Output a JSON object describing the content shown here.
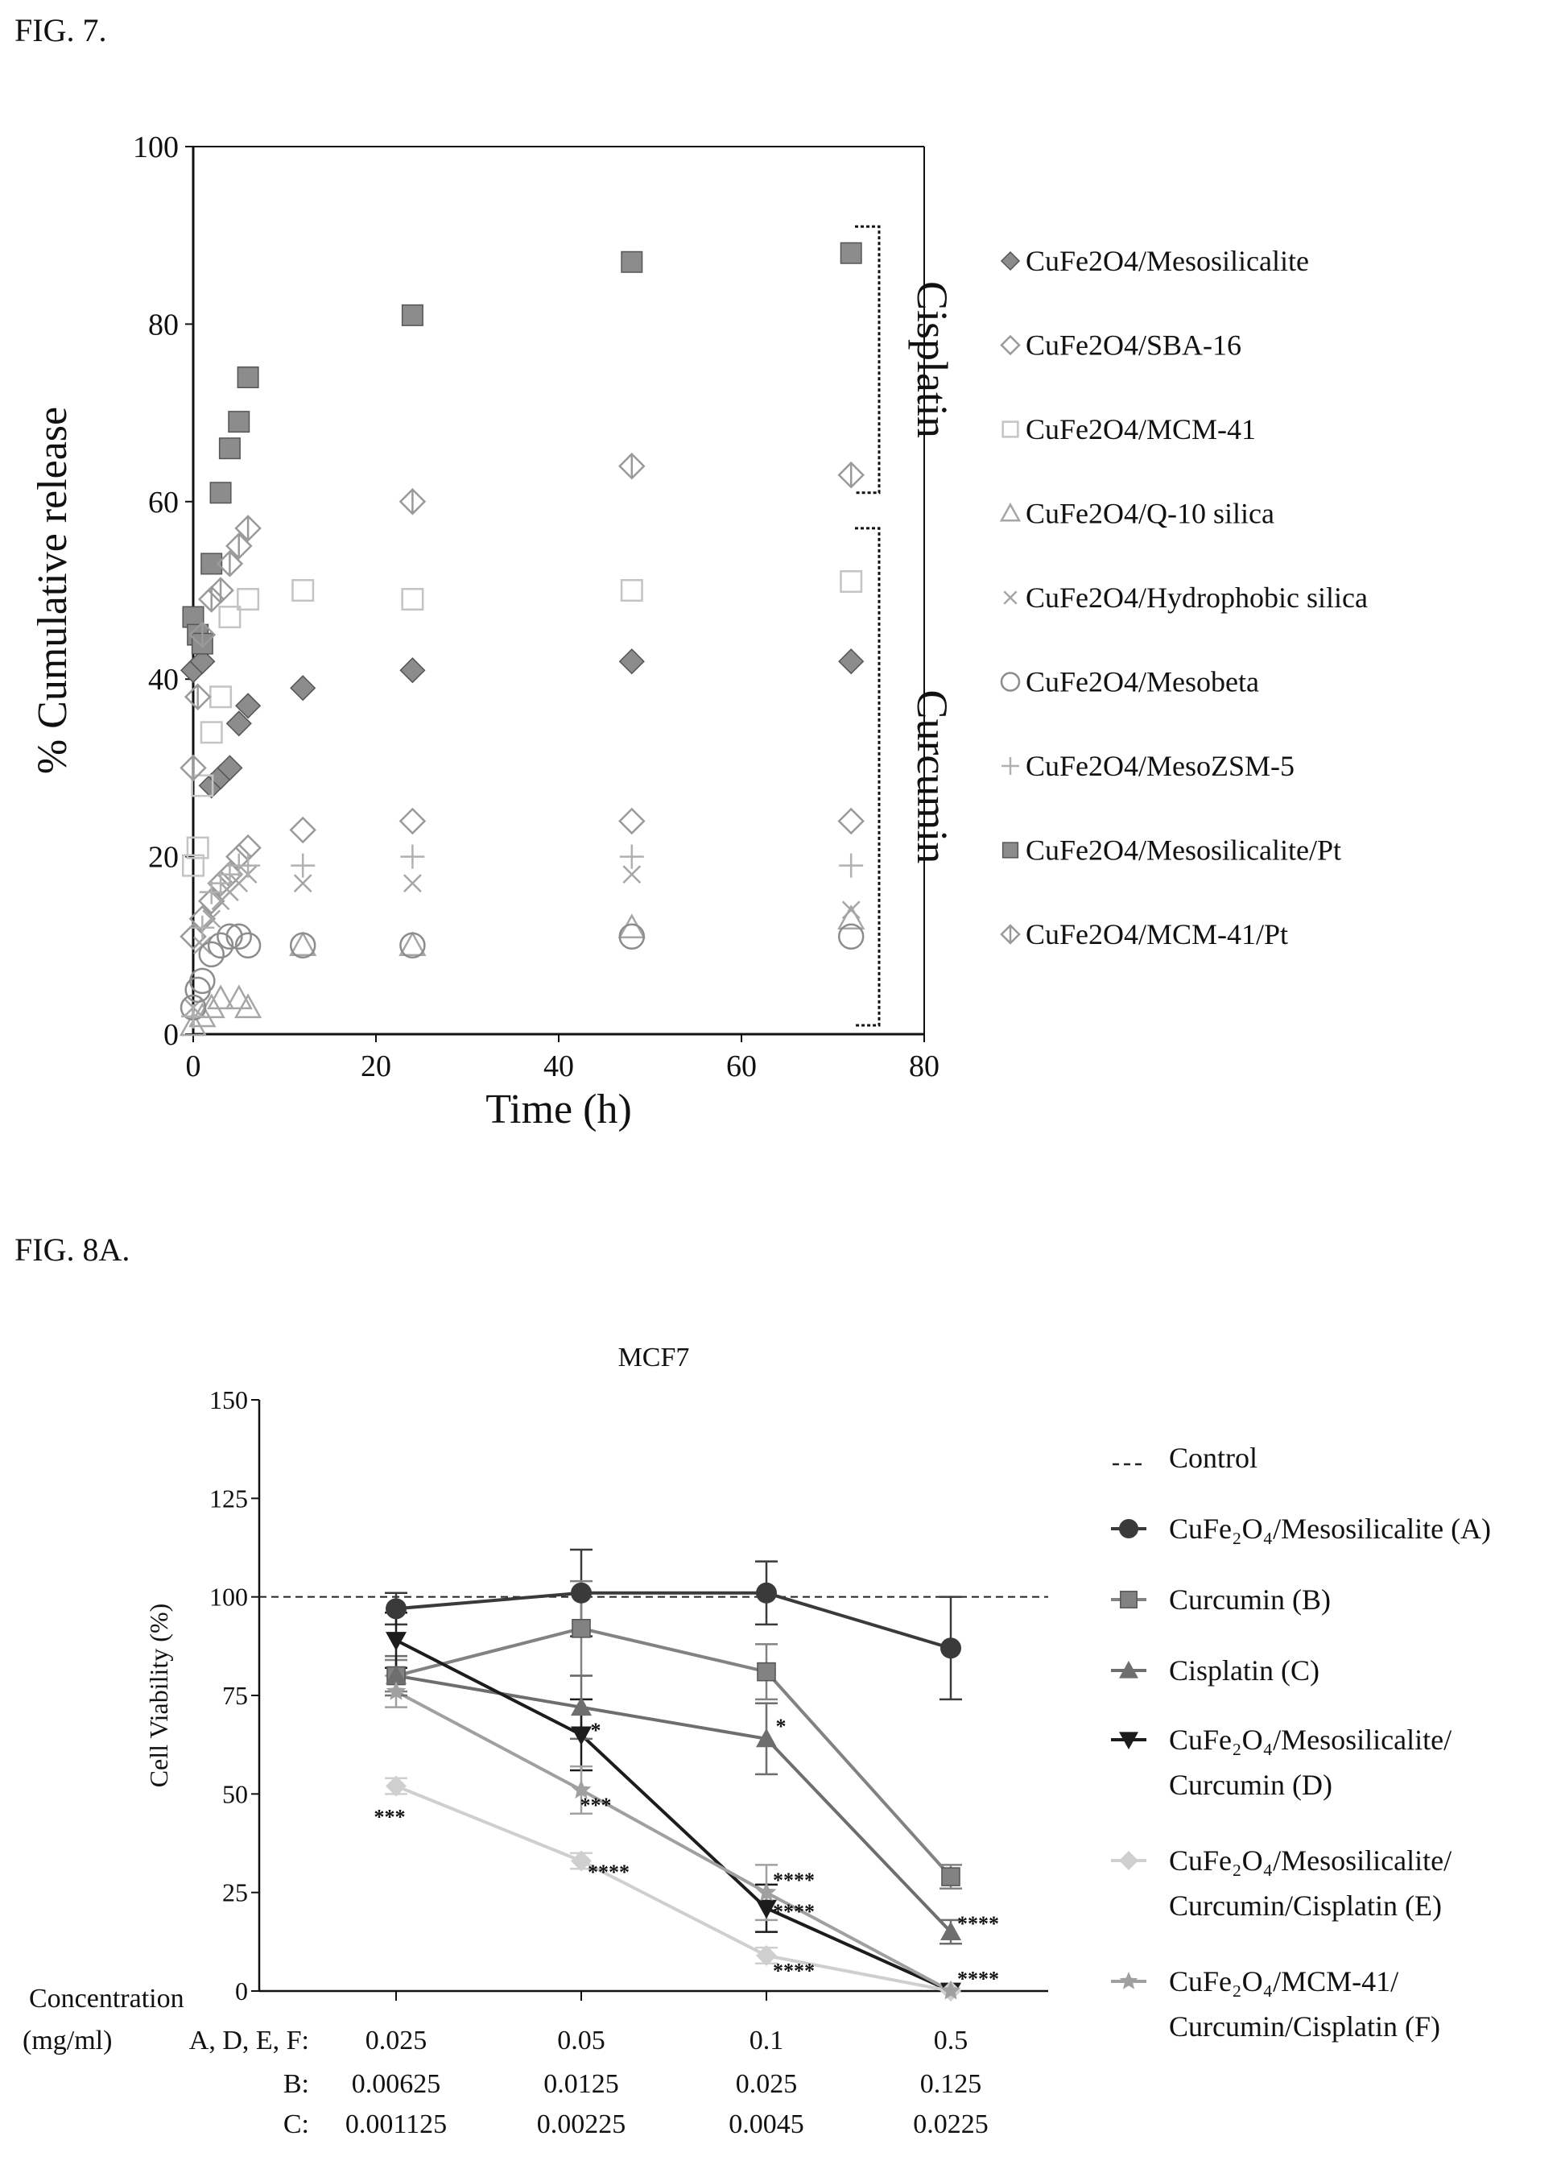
{
  "figures": {
    "fig7_label": "FIG. 7.",
    "fig8a_label": "FIG. 8A."
  },
  "chart_data": [
    {
      "type": "scatter",
      "title": "",
      "xlabel": "Time (h)",
      "ylabel": "% Cumulative release",
      "xlim": [
        0,
        80
      ],
      "ylim": [
        0,
        100
      ],
      "x_ticks": [
        "0",
        "20",
        "40",
        "60",
        "80"
      ],
      "y_ticks": [
        "0",
        "20",
        "40",
        "60",
        "80",
        "100"
      ],
      "legend_position": "right",
      "brackets": [
        {
          "label": "Cisplatin",
          "from": 61,
          "to": 91
        },
        {
          "label": "Curcumin",
          "from": 1,
          "to": 57
        }
      ],
      "series": [
        {
          "name": "CuFe2O4/Mesosilicalite",
          "marker": "diamond-filled",
          "color": "#8c8c8c",
          "points": [
            [
              0,
              41
            ],
            [
              1,
              42
            ],
            [
              2,
              28
            ],
            [
              3,
              29
            ],
            [
              4,
              30
            ],
            [
              5,
              35
            ],
            [
              6,
              37
            ],
            [
              12,
              39
            ],
            [
              24,
              41
            ],
            [
              48,
              42
            ],
            [
              72,
              42
            ]
          ]
        },
        {
          "name": "CuFe2O4/SBA-16",
          "marker": "diamond-open",
          "color": "#9a9a9a",
          "points": [
            [
              0,
              11
            ],
            [
              1,
              13
            ],
            [
              2,
              15
            ],
            [
              3,
              17
            ],
            [
              4,
              18
            ],
            [
              5,
              20
            ],
            [
              6,
              21
            ],
            [
              12,
              23
            ],
            [
              24,
              24
            ],
            [
              48,
              24
            ],
            [
              72,
              24
            ]
          ]
        },
        {
          "name": "CuFe2O4/MCM-41",
          "marker": "square-open",
          "color": "#c4c4c4",
          "points": [
            [
              0,
              19
            ],
            [
              0.5,
              21
            ],
            [
              1,
              28
            ],
            [
              2,
              34
            ],
            [
              3,
              38
            ],
            [
              4,
              47
            ],
            [
              6,
              49
            ],
            [
              12,
              50
            ],
            [
              24,
              49
            ],
            [
              48,
              50
            ],
            [
              72,
              51
            ]
          ]
        },
        {
          "name": "CuFe2O4/Q-10 silica",
          "marker": "triangle-open",
          "color": "#a6a6a6",
          "points": [
            [
              0,
              1
            ],
            [
              1,
              2
            ],
            [
              2,
              3
            ],
            [
              3,
              4
            ],
            [
              5,
              4
            ],
            [
              6,
              3
            ],
            [
              12,
              10
            ],
            [
              24,
              10
            ],
            [
              48,
              12
            ],
            [
              72,
              13
            ]
          ]
        },
        {
          "name": "CuFe2O4/Hydrophobic silica",
          "marker": "cross",
          "color": "#a6a6a6",
          "points": [
            [
              0,
              3
            ],
            [
              1,
              10
            ],
            [
              2,
              13
            ],
            [
              3,
              15
            ],
            [
              4,
              16
            ],
            [
              5,
              17
            ],
            [
              6,
              18
            ],
            [
              12,
              17
            ],
            [
              24,
              17
            ],
            [
              48,
              18
            ],
            [
              72,
              14
            ]
          ]
        },
        {
          "name": "CuFe2O4/Mesobeta",
          "marker": "circle-open",
          "color": "#8c8c8c",
          "points": [
            [
              0,
              3
            ],
            [
              0.5,
              5
            ],
            [
              1,
              6
            ],
            [
              2,
              9
            ],
            [
              3,
              10
            ],
            [
              4,
              11
            ],
            [
              5,
              11
            ],
            [
              6,
              10
            ],
            [
              12,
              10
            ],
            [
              24,
              10
            ],
            [
              48,
              11
            ],
            [
              72,
              11
            ]
          ]
        },
        {
          "name": "CuFe2O4/MesoZSM-5",
          "marker": "plus",
          "color": "#b0b0b0",
          "points": [
            [
              0,
              2
            ],
            [
              1,
              12
            ],
            [
              2,
              16
            ],
            [
              3,
              17
            ],
            [
              4,
              18
            ],
            [
              5,
              19
            ],
            [
              6,
              19
            ],
            [
              12,
              19
            ],
            [
              24,
              20
            ],
            [
              48,
              20
            ],
            [
              72,
              19
            ]
          ]
        },
        {
          "name": "CuFe2O4/Mesosilicalite/Pt",
          "marker": "square-filled",
          "color": "#8c8c8c",
          "points": [
            [
              0,
              47
            ],
            [
              0.5,
              45
            ],
            [
              1,
              44
            ],
            [
              2,
              53
            ],
            [
              3,
              61
            ],
            [
              4,
              66
            ],
            [
              5,
              69
            ],
            [
              6,
              74
            ],
            [
              24,
              81
            ],
            [
              48,
              87
            ],
            [
              72,
              88
            ]
          ]
        },
        {
          "name": "CuFe2O4/MCM-41/Pt",
          "marker": "diamond-split",
          "color": "#9a9a9a",
          "points": [
            [
              0,
              30
            ],
            [
              0.5,
              38
            ],
            [
              1,
              45
            ],
            [
              2,
              49
            ],
            [
              3,
              50
            ],
            [
              4,
              53
            ],
            [
              5,
              55
            ],
            [
              6,
              57
            ],
            [
              24,
              60
            ],
            [
              48,
              64
            ],
            [
              72,
              63
            ]
          ]
        }
      ]
    },
    {
      "type": "line",
      "title": "MCF7",
      "xlabel": "",
      "ylabel": "Cell Viability (%)",
      "ylim": [
        0,
        150
      ],
      "y_ticks": [
        "0",
        "25",
        "50",
        "75",
        "100",
        "125",
        "150"
      ],
      "categories": [
        "0.025",
        "0.05",
        "0.1",
        "0.5"
      ],
      "concentration_table": {
        "title_line1": "Concentration",
        "title_line2": "(mg/ml)",
        "rows": [
          {
            "label": "A, D, E, F:",
            "values": [
              "0.025",
              "0.05",
              "0.1",
              "0.5"
            ]
          },
          {
            "label": "B:",
            "values": [
              "0.00625",
              "0.0125",
              "0.025",
              "0.125"
            ]
          },
          {
            "label": "C:",
            "values": [
              "0.001125",
              "0.00225",
              "0.0045",
              "0.0225"
            ]
          }
        ]
      },
      "control": {
        "name": "Control",
        "value": 100
      },
      "legend_position": "right",
      "series": [
        {
          "name_main": "CuFe₂O₄/Mesosilicalite (A)",
          "name_cont": "",
          "marker": "circle",
          "color": "#3a3a3a",
          "values": [
            97,
            101,
            101,
            87
          ],
          "errors": [
            4,
            11,
            8,
            13
          ]
        },
        {
          "name_main": "Curcumin (B)",
          "name_cont": "",
          "marker": "square",
          "color": "#828282",
          "values": [
            80,
            92,
            81,
            29
          ],
          "errors": [
            4,
            12,
            7,
            3
          ]
        },
        {
          "name_main": "Cisplatin (C)",
          "name_cont": "",
          "marker": "triangle-up",
          "color": "#6e6e6e",
          "values": [
            80,
            72,
            64,
            15
          ],
          "errors": [
            5,
            8,
            9,
            3
          ]
        },
        {
          "name_main": "CuFe₂O₄/Mesosilicalite/",
          "name_cont": "Curcumin (D)",
          "marker": "triangle-down",
          "color": "#1c1c1c",
          "values": [
            89,
            65,
            21,
            0
          ],
          "errors": [
            7,
            9,
            6,
            0
          ]
        },
        {
          "name_main": "CuFe₂O₄/Mesosilicalite/",
          "name_cont": "Curcumin/Cisplatin (E)",
          "marker": "diamond",
          "color": "#cfcfcf",
          "values": [
            52,
            33,
            9,
            0
          ],
          "errors": [
            2,
            2,
            2,
            0
          ]
        },
        {
          "name_main": "CuFe₂O₄/MCM-41/",
          "name_cont": "Curcumin/Cisplatin (F)",
          "marker": "star",
          "color": "#a0a0a0",
          "values": [
            76,
            51,
            25,
            0
          ],
          "errors": [
            4,
            6,
            7,
            0
          ]
        }
      ],
      "annotations": [
        {
          "text": "***",
          "cat": 0,
          "y": 44
        },
        {
          "text": "*",
          "cat": 1,
          "y": 66
        },
        {
          "text": "***",
          "cat": 1,
          "y": 47
        },
        {
          "text": "****",
          "cat": 1,
          "y": 30
        },
        {
          "text": "*",
          "cat": 2,
          "y": 67
        },
        {
          "text": "****",
          "cat": 2,
          "y": 28
        },
        {
          "text": "****",
          "cat": 2,
          "y": 20
        },
        {
          "text": "****",
          "cat": 2,
          "y": 5
        },
        {
          "text": "****",
          "cat": 3,
          "y": 17
        },
        {
          "text": "****",
          "cat": 3,
          "y": 3
        }
      ]
    }
  ]
}
